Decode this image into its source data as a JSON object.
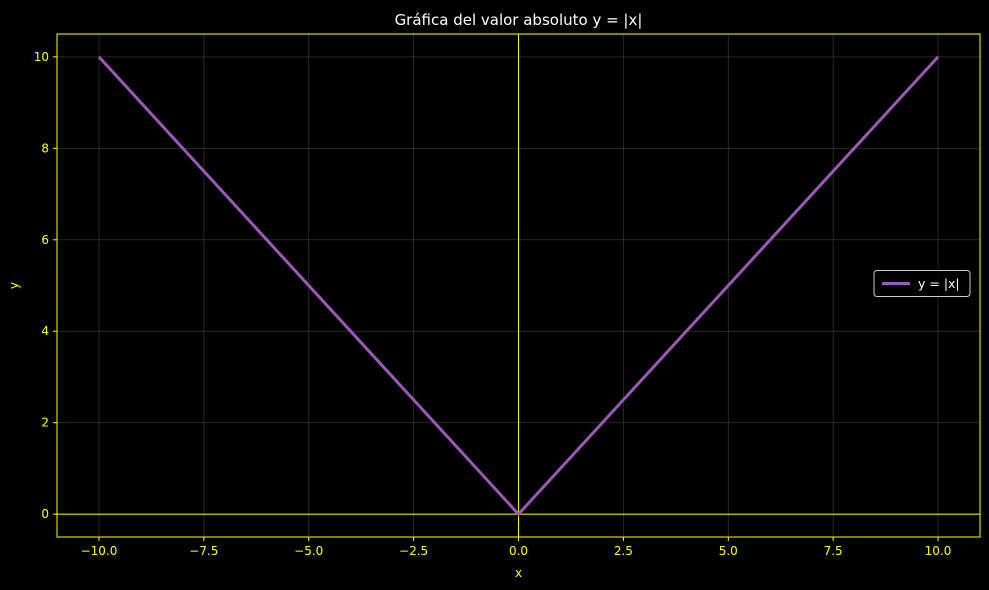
{
  "chart_data": {
    "type": "line",
    "title": "Gráfica del valor absoluto y = |x|",
    "xlabel": "x",
    "ylabel": "y",
    "xlim": [
      -11,
      11
    ],
    "ylim": [
      -0.5,
      10.5
    ],
    "xticks": [
      -10.0,
      -7.5,
      -5.0,
      -2.5,
      0.0,
      2.5,
      5.0,
      7.5,
      10.0
    ],
    "xtick_labels": [
      "−10.0",
      "−7.5",
      "−5.0",
      "−2.5",
      "0.0",
      "2.5",
      "5.0",
      "7.5",
      "10.0"
    ],
    "yticks": [
      0,
      2,
      4,
      6,
      8,
      10
    ],
    "ytick_labels": [
      "0",
      "2",
      "4",
      "6",
      "8",
      "10"
    ],
    "grid": true,
    "reference_lines": {
      "x": 0,
      "y": 0
    },
    "legend_position": "center-right",
    "series": [
      {
        "name": "y = |x|",
        "x": [
          -10,
          0,
          10
        ],
        "y": [
          10,
          0,
          10
        ],
        "color": "#9b59b6"
      }
    ],
    "colors": {
      "background": "#000000",
      "axes": "#ffff00",
      "ticks_text": "#ffff00",
      "title_text": "#ffffff",
      "grid": "#444444"
    }
  }
}
